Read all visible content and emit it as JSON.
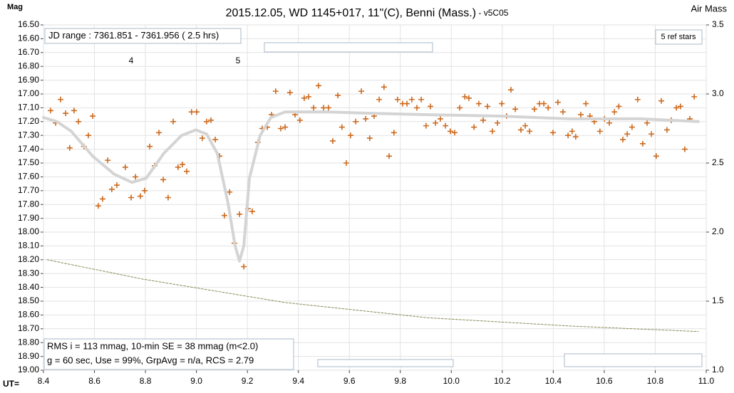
{
  "chart_data": {
    "type": "scatter",
    "title": "2015.12.05, WD 1145+017, 11\"(C), Benni (Mass.)",
    "subtitle": "- v5C05",
    "y_label": "Mag",
    "y2_label": "Air Mass",
    "x_label": "UT=",
    "invert_y": true,
    "grid": true,
    "annotations": [
      "4",
      "5"
    ],
    "info_top": "JD range : 7361.851 - 7361.956 ( 2.5 hrs)",
    "info_stars": "5 ref stars",
    "info_bottom": [
      "RMS i = 113 mmag, 10-min SE = 38 mmag (m<2.0)",
      "g = 60 sec, Use = 99%, GrpAvg = n/a, RCS = 2.79"
    ],
    "xlim": [
      8.4,
      11.0
    ],
    "xticks": [
      8.4,
      8.6,
      8.8,
      {
        "value": 9.0,
        "label": "9.0"
      },
      9.2,
      9.4,
      9.6,
      9.8,
      {
        "value": 10.0,
        "label": "10.0"
      },
      10.2,
      10.4,
      10.6,
      10.8,
      {
        "value": 11.0,
        "label": "11.0"
      }
    ],
    "ylim": [
      16.5,
      19.0
    ],
    "yticks": [
      {
        "value": 16.5,
        "label": "16.50"
      },
      {
        "value": 16.6,
        "label": "16.60"
      },
      {
        "value": 16.7,
        "label": "16.70"
      },
      {
        "value": 16.8,
        "label": "16.80"
      },
      {
        "value": 16.9,
        "label": "16.90"
      },
      {
        "value": 17.0,
        "label": "17.00"
      },
      {
        "value": 17.1,
        "label": "17.10"
      },
      {
        "value": 17.2,
        "label": "17.20"
      },
      {
        "value": 17.3,
        "label": "17.30"
      },
      {
        "value": 17.4,
        "label": "17.40"
      },
      {
        "value": 17.5,
        "label": "17.50"
      },
      {
        "value": 17.6,
        "label": "17.60"
      },
      {
        "value": 17.7,
        "label": "17.70"
      },
      {
        "value": 17.8,
        "label": "17.80"
      },
      {
        "value": 17.9,
        "label": "17.90"
      },
      {
        "value": 18.0,
        "label": "18.00"
      },
      {
        "value": 18.1,
        "label": "18.10"
      },
      {
        "value": 18.2,
        "label": "18.20"
      },
      {
        "value": 18.3,
        "label": "18.30"
      },
      {
        "value": 18.4,
        "label": "18.40"
      },
      {
        "value": 18.5,
        "label": "18.50"
      },
      {
        "value": 18.6,
        "label": "18.60"
      },
      {
        "value": 18.7,
        "label": "18.70"
      },
      {
        "value": 18.8,
        "label": "18.80"
      },
      {
        "value": 18.9,
        "label": "18.90"
      },
      {
        "value": 19.0,
        "label": "19.00"
      }
    ],
    "y2lim": [
      1.0,
      3.5
    ],
    "y2ticks": [
      {
        "value": 1.0,
        "label": "1.0"
      },
      1.5,
      {
        "value": 2.0,
        "label": "2.0"
      },
      2.5,
      {
        "value": 3.0,
        "label": "3.0"
      },
      3.5
    ],
    "series": [
      {
        "color": "#cc6a1e",
        "marker": "+",
        "x": [
          8.428,
          8.448,
          8.467,
          8.487,
          8.503,
          8.52,
          8.537,
          8.559,
          8.576,
          8.593,
          8.615,
          8.632,
          8.652,
          8.668,
          8.688,
          8.721,
          8.744,
          8.761,
          8.78,
          8.797,
          8.817,
          8.836,
          8.853,
          8.87,
          8.889,
          8.909,
          8.928,
          8.945,
          8.962,
          8.981,
          9.001,
          9.023,
          9.04,
          9.057,
          9.074,
          9.091,
          9.11,
          9.13,
          9.149,
          9.169,
          9.186,
          9.202,
          9.219,
          9.241,
          9.258,
          9.278,
          9.295,
          9.311,
          9.331,
          9.348,
          9.367,
          9.387,
          9.406,
          9.423,
          9.44,
          9.46,
          9.479,
          9.499,
          9.518,
          9.535,
          9.555,
          9.571,
          9.588,
          9.605,
          9.625,
          9.647,
          9.664,
          9.68,
          9.697,
          9.717,
          9.736,
          9.756,
          9.775,
          9.789,
          9.809,
          9.826,
          9.845,
          9.865,
          9.882,
          9.901,
          9.918,
          9.938,
          9.957,
          9.977,
          9.996,
          10.013,
          10.033,
          10.053,
          10.069,
          10.089,
          10.108,
          10.125,
          10.142,
          10.161,
          10.181,
          10.198,
          10.217,
          10.234,
          10.251,
          10.273,
          10.29,
          10.307,
          10.326,
          10.346,
          10.363,
          10.38,
          10.399,
          10.418,
          10.438,
          10.458,
          10.474,
          10.488,
          10.508,
          10.528,
          10.544,
          10.561,
          10.583,
          10.601,
          10.62,
          10.64,
          10.657,
          10.673,
          10.69,
          10.709,
          10.731,
          10.751,
          10.768,
          10.785,
          10.804,
          10.824,
          10.846,
          10.863,
          10.883,
          10.899,
          10.916,
          10.936,
          10.953
        ],
        "values": [
          17.12,
          17.21,
          17.04,
          17.14,
          17.39,
          17.12,
          17.2,
          17.38,
          17.3,
          17.16,
          17.81,
          17.76,
          17.48,
          17.69,
          17.66,
          17.53,
          17.75,
          17.6,
          17.74,
          17.7,
          17.38,
          17.52,
          17.28,
          17.62,
          17.75,
          17.2,
          17.53,
          17.51,
          17.56,
          17.13,
          17.13,
          17.32,
          17.2,
          17.19,
          17.33,
          17.45,
          17.88,
          17.71,
          18.08,
          17.87,
          18.25,
          17.83,
          17.85,
          17.35,
          17.25,
          17.24,
          17.15,
          16.98,
          17.25,
          17.24,
          16.99,
          17.15,
          17.19,
          17.03,
          17.02,
          17.1,
          16.94,
          17.1,
          17.1,
          17.34,
          17.01,
          17.24,
          17.5,
          17.3,
          17.2,
          16.98,
          17.18,
          17.32,
          17.16,
          17.04,
          16.95,
          17.45,
          17.28,
          17.04,
          17.07,
          17.07,
          17.04,
          17.1,
          17.04,
          17.23,
          17.09,
          17.21,
          17.18,
          17.23,
          17.27,
          17.28,
          17.1,
          17.02,
          17.03,
          17.24,
          17.07,
          17.19,
          17.09,
          17.27,
          17.21,
          17.07,
          17.16,
          16.97,
          17.11,
          17.26,
          17.23,
          17.27,
          17.11,
          17.07,
          17.07,
          17.1,
          17.28,
          17.06,
          17.13,
          17.3,
          17.27,
          17.31,
          17.15,
          17.07,
          17.16,
          17.2,
          17.27,
          17.18,
          17.21,
          17.13,
          17.09,
          17.33,
          17.29,
          17.24,
          17.04,
          17.36,
          17.21,
          17.29,
          17.45,
          17.05,
          17.26,
          17.19,
          17.1,
          17.09,
          17.4,
          17.18,
          17.02
        ]
      },
      {
        "color": "#d4d4d4",
        "line": true,
        "x": [
          8.4,
          8.453,
          8.509,
          8.593,
          8.677,
          8.747,
          8.803,
          8.872,
          8.942,
          8.998,
          9.04,
          9.082,
          9.124,
          9.152,
          9.169,
          9.186,
          9.208,
          9.25,
          9.292,
          9.348,
          9.404,
          9.515,
          9.683,
          9.907,
          10.186,
          10.466,
          10.746,
          10.969
        ],
        "values": [
          17.17,
          17.2,
          17.27,
          17.45,
          17.58,
          17.64,
          17.61,
          17.43,
          17.3,
          17.26,
          17.29,
          17.43,
          17.79,
          18.1,
          18.21,
          18.1,
          17.61,
          17.3,
          17.17,
          17.13,
          17.13,
          17.13,
          17.14,
          17.15,
          17.16,
          17.18,
          17.18,
          17.2
        ]
      },
      {
        "color": "#8c8a5c",
        "line": true,
        "dash": "3,2",
        "axis": "y2",
        "x": [
          8.414,
          8.789,
          9.348,
          9.907,
          10.466,
          10.969
        ],
        "values": [
          1.8,
          1.66,
          1.49,
          1.38,
          1.32,
          1.28
        ]
      }
    ]
  }
}
